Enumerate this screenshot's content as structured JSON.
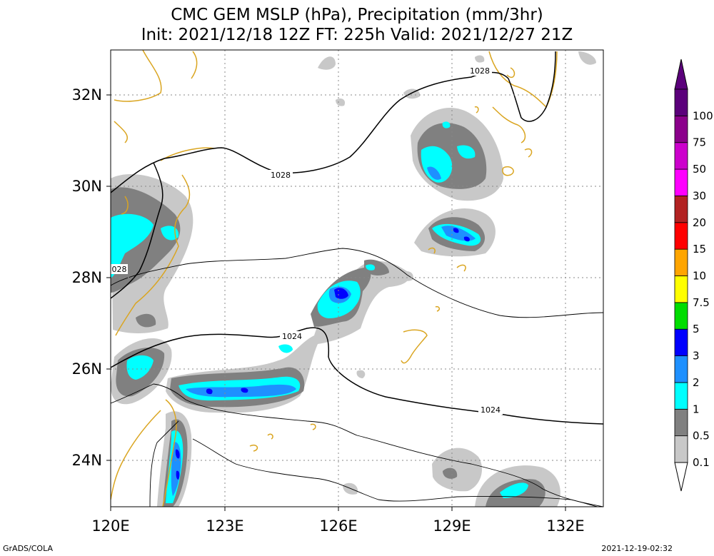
{
  "title": {
    "line1": "CMC GEM MSLP (hPa), Precipitation (mm/3hr)",
    "line2": "Init: 2021/12/18 12Z  FT: 225h  Valid: 2021/12/27 21Z"
  },
  "axes": {
    "lon_labels": [
      "120E",
      "123E",
      "126E",
      "129E",
      "132E"
    ],
    "lat_labels": [
      "24N",
      "26N",
      "28N",
      "30N",
      "32N"
    ],
    "lon_range": [
      120,
      133
    ],
    "lat_range": [
      23,
      33
    ],
    "grid": true
  },
  "isobar_labels": [
    "1028",
    "1028",
    "028",
    "1024",
    "1024"
  ],
  "colorbar": {
    "labels": [
      "0.1",
      "0.5",
      "1",
      "2",
      "3",
      "5",
      "7.5",
      "10",
      "15",
      "20",
      "30",
      "50",
      "75",
      "100"
    ],
    "colors": [
      "#c8c8c8",
      "#808080",
      "#00ffff",
      "#1e90ff",
      "#0000ff",
      "#00dd00",
      "#ffff00",
      "#ffa500",
      "#ff0000",
      "#b22222",
      "#ff00ff",
      "#cc00cc",
      "#8b008b",
      "#5b007b"
    ]
  },
  "footer": {
    "left": "GrADS/COLA",
    "right": "2021-12-19-02:32"
  }
}
